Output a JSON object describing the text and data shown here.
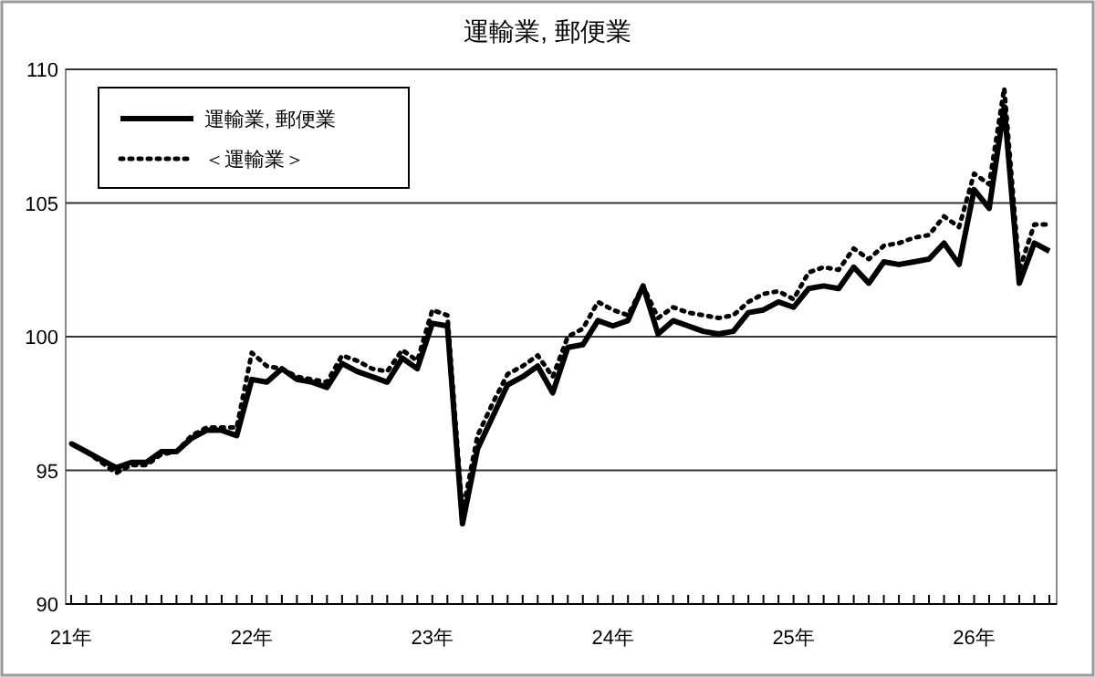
{
  "chart_data": {
    "type": "line",
    "title": "運輸業, 郵便業",
    "categories": [
      "21年",
      null,
      null,
      null,
      null,
      null,
      null,
      null,
      null,
      null,
      null,
      null,
      "22年",
      null,
      null,
      null,
      null,
      null,
      null,
      null,
      null,
      null,
      null,
      null,
      "23年",
      null,
      null,
      null,
      null,
      null,
      null,
      null,
      null,
      null,
      null,
      null,
      "24年",
      null,
      null,
      null,
      null,
      null,
      null,
      null,
      null,
      null,
      null,
      null,
      "25年",
      null,
      null,
      null,
      null,
      null,
      null,
      null,
      null,
      null,
      null,
      null,
      "26年",
      null,
      null,
      null,
      null,
      null
    ],
    "series": [
      {
        "name": "運輸業, 郵便業",
        "color": "#000000",
        "line_style": "solid",
        "values": [
          96.0,
          95.7,
          95.4,
          95.1,
          95.3,
          95.3,
          95.7,
          95.7,
          96.2,
          96.5,
          96.5,
          96.3,
          98.4,
          98.3,
          98.8,
          98.4,
          98.3,
          98.1,
          99.0,
          98.7,
          98.5,
          98.3,
          99.2,
          98.8,
          100.5,
          100.4,
          93.0,
          95.8,
          97.0,
          98.2,
          98.5,
          98.9,
          97.9,
          99.6,
          99.7,
          100.6,
          100.4,
          100.6,
          101.9,
          100.1,
          100.6,
          100.4,
          100.2,
          100.1,
          100.2,
          100.9,
          101.0,
          101.3,
          101.1,
          101.8,
          101.9,
          101.8,
          102.6,
          102.0,
          102.8,
          102.7,
          102.8,
          102.9,
          103.5,
          102.7,
          105.5,
          104.8,
          108.6,
          102.0,
          103.5,
          103.2
        ]
      },
      {
        "name": "＜運輸業＞",
        "color": "#000000",
        "line_style": "dotted",
        "values": [
          96.0,
          95.7,
          95.3,
          94.9,
          95.2,
          95.2,
          95.6,
          95.7,
          96.3,
          96.6,
          96.6,
          96.6,
          99.4,
          98.9,
          98.8,
          98.5,
          98.4,
          98.3,
          99.3,
          99.1,
          98.8,
          98.7,
          99.5,
          99.1,
          101.0,
          100.8,
          93.4,
          96.3,
          97.5,
          98.6,
          98.9,
          99.3,
          98.5,
          100.0,
          100.3,
          101.3,
          101.0,
          100.8,
          101.9,
          100.7,
          101.1,
          100.9,
          100.8,
          100.7,
          100.8,
          101.3,
          101.6,
          101.7,
          101.4,
          102.4,
          102.6,
          102.5,
          103.3,
          102.9,
          103.4,
          103.5,
          103.7,
          103.8,
          104.5,
          104.1,
          106.1,
          105.7,
          109.3,
          102.5,
          104.2,
          104.2
        ]
      }
    ],
    "ylim": [
      90,
      110
    ],
    "yticks": [
      90,
      95,
      100,
      105,
      110
    ],
    "grid": "y",
    "legend": "top left"
  }
}
